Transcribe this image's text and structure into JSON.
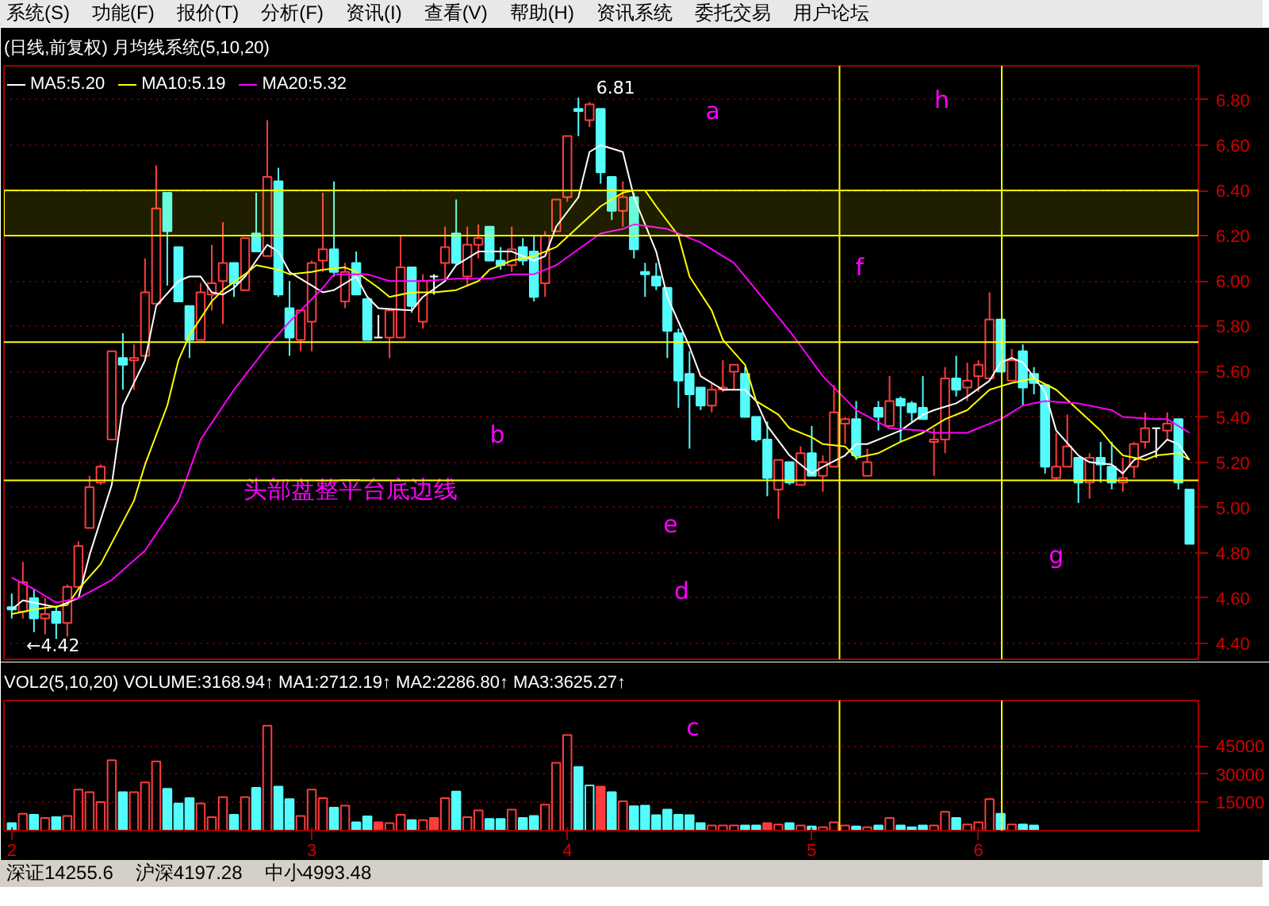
{
  "chart_data": [
    {
      "type": "candlestick",
      "title": "(日线,前复权) 月均线系统(5,10,20)",
      "categories": [
        "2",
        null,
        null,
        null,
        null,
        null,
        null,
        null,
        null,
        null,
        null,
        null,
        null,
        null,
        null,
        null,
        null,
        null,
        null,
        null,
        null,
        null,
        null,
        null,
        null,
        null,
        null,
        "3",
        null,
        null,
        null,
        null,
        null,
        null,
        null,
        null,
        null,
        null,
        null,
        null,
        null,
        null,
        null,
        null,
        null,
        null,
        null,
        null,
        null,
        null,
        "4",
        null,
        null,
        null,
        null,
        null,
        null,
        null,
        null,
        null,
        null,
        null,
        null,
        null,
        null,
        null,
        null,
        null,
        null,
        null,
        null,
        null,
        "5",
        null,
        null,
        null,
        null,
        null,
        null,
        null,
        null,
        null,
        null,
        null,
        null,
        null,
        null,
        "6",
        null,
        null,
        null,
        null,
        null,
        null,
        null,
        null,
        null,
        null,
        null,
        null,
        null,
        null,
        null,
        null,
        null,
        null,
        null
      ],
      "ohlc": [
        [
          4.56,
          4.62,
          4.51,
          4.55
        ],
        [
          4.54,
          4.76,
          4.51,
          4.67
        ],
        [
          4.6,
          4.64,
          4.45,
          4.51
        ],
        [
          4.51,
          4.6,
          4.44,
          4.53
        ],
        [
          4.54,
          4.56,
          4.42,
          4.49
        ],
        [
          4.49,
          4.66,
          4.43,
          4.65
        ],
        [
          4.65,
          4.85,
          4.64,
          4.83
        ],
        [
          4.91,
          5.14,
          4.91,
          5.09
        ],
        [
          5.11,
          5.19,
          5.1,
          5.18
        ],
        [
          5.3,
          5.69,
          5.3,
          5.69
        ],
        [
          5.66,
          5.77,
          5.52,
          5.63
        ],
        [
          5.65,
          5.72,
          5.52,
          5.66
        ],
        [
          5.67,
          6.1,
          5.66,
          5.95
        ],
        [
          5.9,
          6.51,
          5.9,
          6.32
        ],
        [
          6.39,
          6.39,
          5.98,
          6.22
        ],
        [
          6.15,
          6.15,
          5.91,
          5.91
        ],
        [
          5.89,
          5.89,
          5.66,
          5.74
        ],
        [
          5.74,
          5.99,
          5.74,
          5.95
        ],
        [
          5.94,
          6.16,
          5.87,
          5.99
        ],
        [
          6.0,
          6.26,
          5.81,
          6.08
        ],
        [
          6.08,
          6.08,
          5.93,
          5.99
        ],
        [
          5.96,
          6.19,
          5.96,
          6.19
        ],
        [
          6.21,
          6.39,
          6.13,
          6.13
        ],
        [
          6.11,
          6.71,
          6.11,
          6.46
        ],
        [
          6.44,
          6.5,
          5.93,
          5.94
        ],
        [
          5.88,
          6.0,
          5.67,
          5.75
        ],
        [
          5.74,
          5.87,
          5.69,
          5.87
        ],
        [
          5.82,
          6.09,
          5.69,
          6.08
        ],
        [
          6.09,
          6.39,
          6.04,
          6.14
        ],
        [
          6.14,
          6.44,
          6.02,
          6.04
        ],
        [
          5.91,
          6.08,
          5.88,
          6.04
        ],
        [
          6.08,
          6.13,
          5.94,
          5.94
        ],
        [
          5.92,
          5.92,
          5.74,
          5.74
        ],
        [
          5.75,
          5.85,
          5.75,
          5.75
        ],
        [
          5.75,
          5.87,
          5.66,
          5.87
        ],
        [
          5.75,
          6.2,
          5.75,
          6.06
        ],
        [
          6.06,
          6.06,
          5.86,
          5.89
        ],
        [
          5.82,
          6.03,
          5.79,
          6.0
        ],
        [
          6.02,
          6.03,
          5.94,
          6.02
        ],
        [
          6.08,
          6.24,
          6.0,
          6.15
        ],
        [
          6.21,
          6.36,
          6.07,
          6.08
        ],
        [
          6.02,
          6.24,
          5.98,
          6.16
        ],
        [
          6.16,
          6.25,
          6.1,
          6.19
        ],
        [
          6.24,
          6.24,
          6.09,
          6.09
        ],
        [
          6.09,
          6.15,
          6.05,
          6.07
        ],
        [
          6.07,
          6.24,
          6.04,
          6.14
        ],
        [
          6.15,
          6.19,
          6.07,
          6.09
        ],
        [
          6.13,
          6.2,
          5.91,
          5.93
        ],
        [
          5.99,
          6.22,
          5.93,
          6.2
        ],
        [
          6.22,
          6.36,
          6.22,
          6.36
        ],
        [
          6.37,
          6.64,
          6.35,
          6.64
        ],
        [
          6.76,
          6.81,
          6.64,
          6.75
        ],
        [
          6.71,
          6.79,
          6.68,
          6.78
        ],
        [
          6.76,
          6.76,
          6.43,
          6.48
        ],
        [
          6.46,
          6.46,
          6.27,
          6.31
        ],
        [
          6.31,
          6.44,
          6.24,
          6.37
        ],
        [
          6.37,
          6.39,
          6.1,
          6.14
        ],
        [
          6.04,
          6.08,
          5.93,
          6.03
        ],
        [
          6.02,
          6.08,
          5.96,
          5.98
        ],
        [
          5.97,
          5.97,
          5.66,
          5.78
        ],
        [
          5.77,
          5.79,
          5.44,
          5.56
        ],
        [
          5.59,
          5.69,
          5.26,
          5.5
        ],
        [
          5.53,
          5.53,
          5.43,
          5.45
        ],
        [
          5.45,
          5.55,
          5.42,
          5.52
        ],
        [
          5.52,
          5.65,
          5.51,
          5.53
        ],
        [
          5.6,
          5.63,
          5.52,
          5.63
        ],
        [
          5.59,
          5.62,
          5.4,
          5.4
        ],
        [
          5.4,
          5.4,
          5.29,
          5.3
        ],
        [
          5.3,
          5.38,
          5.05,
          5.13
        ],
        [
          5.08,
          5.21,
          4.95,
          5.21
        ],
        [
          5.2,
          5.2,
          5.1,
          5.11
        ],
        [
          5.1,
          5.27,
          5.1,
          5.24
        ],
        [
          5.24,
          5.36,
          5.14,
          5.14
        ],
        [
          5.14,
          5.23,
          5.07,
          5.2
        ],
        [
          5.18,
          5.54,
          5.18,
          5.42
        ],
        [
          5.37,
          5.4,
          5.28,
          5.39
        ],
        [
          5.39,
          5.47,
          5.21,
          5.23
        ],
        [
          5.14,
          5.26,
          5.14,
          5.2
        ],
        [
          5.44,
          5.47,
          5.34,
          5.4
        ],
        [
          5.36,
          5.58,
          5.36,
          5.47
        ],
        [
          5.48,
          5.49,
          5.29,
          5.45
        ],
        [
          5.46,
          5.47,
          5.38,
          5.42
        ],
        [
          5.44,
          5.58,
          5.39,
          5.39
        ],
        [
          5.29,
          5.35,
          5.14,
          5.3
        ],
        [
          5.3,
          5.62,
          5.24,
          5.57
        ],
        [
          5.57,
          5.67,
          5.49,
          5.52
        ],
        [
          5.53,
          5.64,
          5.47,
          5.56
        ],
        [
          5.58,
          5.65,
          5.51,
          5.63
        ],
        [
          5.57,
          5.95,
          5.57,
          5.83
        ],
        [
          5.83,
          5.83,
          5.6,
          5.6
        ],
        [
          5.56,
          5.7,
          5.56,
          5.65
        ],
        [
          5.69,
          5.72,
          5.45,
          5.53
        ],
        [
          5.59,
          5.62,
          5.5,
          5.55
        ],
        [
          5.54,
          5.54,
          5.15,
          5.18
        ],
        [
          5.13,
          5.33,
          5.12,
          5.18
        ],
        [
          5.18,
          5.41,
          5.18,
          5.27
        ],
        [
          5.22,
          5.22,
          5.02,
          5.11
        ],
        [
          5.11,
          5.24,
          5.04,
          5.22
        ],
        [
          5.22,
          5.29,
          5.11,
          5.19
        ],
        [
          5.18,
          5.29,
          5.08,
          5.11
        ],
        [
          5.11,
          5.22,
          5.07,
          5.13
        ],
        [
          5.18,
          5.29,
          5.13,
          5.28
        ],
        [
          5.29,
          5.42,
          5.26,
          5.35
        ],
        [
          5.35,
          5.35,
          5.22,
          5.35
        ],
        [
          5.34,
          5.42,
          5.3,
          5.37
        ],
        [
          5.39,
          5.39,
          5.08,
          5.11
        ],
        [
          5.08,
          5.08,
          4.84,
          4.84
        ]
      ],
      "colors": [
        "#54fcfc",
        "#ff3c3c",
        "#54fcfc",
        "#ff3c3c",
        "#54fcfc",
        "#ff3c3c",
        "#ff3c3c",
        "#ff3c3c",
        "#ff3c3c",
        "#ff3c3c",
        "#54fcfc",
        "#ff3c3c",
        "#ff3c3c",
        "#ff3c3c",
        "#54fcfc",
        "#54fcfc",
        "#54fcfc",
        "#ff3c3c",
        "#ff3c3c",
        "#ff3c3c",
        "#54fcfc",
        "#ff3c3c",
        "#54fcfc",
        "#ff3c3c",
        "#54fcfc",
        "#54fcfc",
        "#ff3c3c",
        "#ff3c3c",
        "#ff3c3c",
        "#54fcfc",
        "#ff3c3c",
        "#54fcfc",
        "#54fcfc",
        "#ffffff",
        "#ff3c3c",
        "#ff3c3c",
        "#54fcfc",
        "#ff3c3c",
        "#ffffff",
        "#ff3c3c",
        "#54fcfc",
        "#ff3c3c",
        "#ff3c3c",
        "#54fcfc",
        "#54fcfc",
        "#ff3c3c",
        "#54fcfc",
        "#54fcfc",
        "#ff3c3c",
        "#ff3c3c",
        "#ff3c3c",
        "#54fcfc",
        "#ff3c3c",
        "#54fcfc",
        "#54fcfc",
        "#ff3c3c",
        "#54fcfc",
        "#54fcfc",
        "#54fcfc",
        "#54fcfc",
        "#54fcfc",
        "#54fcfc",
        "#54fcfc",
        "#ff3c3c",
        "#ff3c3c",
        "#ff3c3c",
        "#54fcfc",
        "#54fcfc",
        "#54fcfc",
        "#ff3c3c",
        "#54fcfc",
        "#ff3c3c",
        "#54fcfc",
        "#ff3c3c",
        "#ff3c3c",
        "#ff3c3c",
        "#54fcfc",
        "#ff3c3c",
        "#54fcfc",
        "#ff3c3c",
        "#54fcfc",
        "#54fcfc",
        "#54fcfc",
        "#ff3c3c",
        "#ff3c3c",
        "#54fcfc",
        "#ff3c3c",
        "#ff3c3c",
        "#ff3c3c",
        "#54fcfc",
        "#ff3c3c",
        "#54fcfc",
        "#54fcfc",
        "#54fcfc",
        "#ff3c3c",
        "#ff3c3c",
        "#54fcfc",
        "#ff3c3c",
        "#54fcfc",
        "#54fcfc",
        "#ff3c3c",
        "#ff3c3c",
        "#ff3c3c",
        "#ffffff",
        "#ff3c3c",
        "#54fcfc",
        "#54fcfc"
      ],
      "series": [
        {
          "name": "MA5:5.20",
          "type": "line",
          "color": "#ffffff",
          "values": [
            4.55,
            4.59,
            null,
            null,
            4.56,
            null,
            4.6,
            4.79,
            null,
            5.1,
            5.45,
            null,
            5.65,
            5.89,
            null,
            6.0,
            6.02,
            6.02,
            5.95,
            5.94,
            5.97,
            6.02,
            6.09,
            6.16,
            6.13,
            6.04,
            null,
            5.98,
            5.95,
            5.96,
            null,
            6.02,
            5.93,
            5.88,
            null,
            null,
            5.87,
            5.93,
            null,
            6.0,
            6.07,
            null,
            6.13,
            null,
            null,
            6.13,
            null,
            6.09,
            6.11,
            6.24,
            null,
            6.37,
            6.57,
            6.6,
            null,
            6.57,
            6.37,
            null,
            6.13,
            5.93,
            null,
            5.71,
            5.58,
            null,
            5.52,
            null,
            5.52,
            5.47,
            5.36,
            null,
            5.23,
            5.19,
            5.15,
            5.18,
            null,
            5.23,
            5.28,
            5.28,
            null,
            5.32,
            5.34,
            null,
            5.41,
            5.43,
            null,
            5.46,
            5.49,
            null,
            5.56,
            5.64,
            5.66,
            5.64,
            null,
            5.51,
            5.34,
            null,
            5.23,
            5.2,
            null,
            5.19,
            5.15,
            5.21,
            null,
            5.25,
            5.3,
            5.28,
            5.21
          ]
        },
        {
          "name": "MA10:5.19",
          "type": "line",
          "color": "#ffff00",
          "values": [
            4.53,
            null,
            4.55,
            null,
            null,
            4.57,
            4.64,
            null,
            4.75,
            null,
            null,
            5.03,
            5.19,
            null,
            5.45,
            5.65,
            5.76,
            null,
            5.91,
            5.96,
            null,
            6.03,
            6.07,
            null,
            6.05,
            6.03,
            null,
            6.04,
            6.05,
            null,
            6.06,
            6.04,
            null,
            5.97,
            5.93,
            null,
            5.95,
            null,
            5.95,
            null,
            5.96,
            null,
            6.0,
            6.05,
            null,
            6.09,
            null,
            6.11,
            null,
            6.15,
            null,
            6.24,
            null,
            6.33,
            null,
            6.39,
            6.4,
            6.4,
            6.33,
            null,
            6.2,
            6.02,
            null,
            5.87,
            5.74,
            null,
            5.63,
            5.47,
            null,
            5.41,
            5.35,
            null,
            5.31,
            5.28,
            null,
            5.27,
            5.22,
            null,
            5.24,
            null,
            5.29,
            null,
            5.33,
            null,
            5.39,
            null,
            5.43,
            null,
            5.52,
            null,
            5.55,
            null,
            5.57,
            null,
            5.52,
            null,
            5.43,
            null,
            5.34,
            5.28,
            5.23,
            null,
            5.21,
            5.23,
            null,
            5.24,
            5.21
          ]
        },
        {
          "name": "MA20:5.32",
          "type": "line",
          "color": "#ff00ff",
          "values": [
            4.69,
            null,
            4.64,
            null,
            4.58,
            null,
            4.6,
            null,
            null,
            4.68,
            null,
            null,
            4.81,
            null,
            null,
            5.03,
            null,
            5.3,
            null,
            null,
            5.52,
            null,
            null,
            5.71,
            null,
            5.82,
            null,
            null,
            5.97,
            6.03,
            null,
            null,
            6.03,
            null,
            6.0,
            null,
            null,
            6.0,
            null,
            null,
            6.01,
            null,
            null,
            6.01,
            null,
            6.03,
            null,
            6.03,
            null,
            6.07,
            null,
            6.14,
            null,
            6.21,
            null,
            6.23,
            6.25,
            null,
            null,
            6.23,
            null,
            null,
            6.17,
            null,
            null,
            6.08,
            null,
            5.96,
            null,
            null,
            5.78,
            null,
            null,
            5.58,
            null,
            null,
            5.43,
            null,
            null,
            5.35,
            null,
            null,
            5.34,
            5.33,
            null,
            null,
            5.33,
            null,
            null,
            5.39,
            null,
            5.45,
            null,
            5.47,
            null,
            null,
            5.46,
            null,
            null,
            5.43,
            5.4,
            null,
            null,
            5.39,
            5.39,
            null,
            5.33
          ]
        }
      ],
      "ylim": [
        4.33,
        6.95
      ],
      "yticks": [
        {
          "value": 4.4,
          "label": "4.40"
        },
        {
          "value": 4.6,
          "label": "4.60"
        },
        {
          "value": 4.8,
          "label": "4.80"
        },
        {
          "value": 5.0,
          "label": "5.00"
        },
        {
          "value": 5.2,
          "label": "5.20"
        },
        {
          "value": 5.4,
          "label": "5.40"
        },
        {
          "value": 5.6,
          "label": "5.60"
        },
        {
          "value": 5.8,
          "label": "5.80"
        },
        {
          "value": 6.0,
          "label": "6.00"
        },
        {
          "value": 6.2,
          "label": "6.20"
        },
        {
          "value": 6.4,
          "label": "6.40"
        },
        {
          "value": 6.6,
          "label": "6.60"
        },
        {
          "value": 6.8,
          "label": "6.80"
        }
      ],
      "grid": "y",
      "tick_labels": "y",
      "legend": "top left",
      "ref_lines": [
        {
          "axis": "y",
          "value": 5.73,
          "color": "#ffff00"
        },
        {
          "axis": "y",
          "value": 5.12,
          "color": "#ffff00"
        }
      ],
      "bands": [
        {
          "axis": "y",
          "from": 6.2,
          "to": 6.4,
          "color": "#ffff00"
        }
      ],
      "annotations": [
        "系统(S)",
        "功能(F)",
        "报价(T)",
        "分析(F)",
        "资讯(I)",
        "查看(V)",
        "帮助(H)",
        "资讯系统",
        "委托交易",
        "用户论坛",
        "6.81",
        "←4.42",
        "a",
        "b",
        "d",
        "e",
        "f",
        "g",
        "h",
        "头部盘整平台底边线"
      ]
    },
    {
      "type": "bar",
      "title": "VOL2(5,10,20)  VOLUME:3168.94↑  MA1:2712.19↑  MA2:2286.80↑  MA3:3625.27↑",
      "categories": [
        "2",
        null,
        null,
        null,
        null,
        null,
        null,
        null,
        null,
        null,
        null,
        null,
        null,
        null,
        null,
        null,
        null,
        null,
        null,
        null,
        null,
        null,
        null,
        null,
        null,
        null,
        null,
        "3",
        null,
        null,
        null,
        null,
        null,
        null,
        null,
        null,
        null,
        null,
        null,
        null,
        null,
        null,
        null,
        null,
        null,
        null,
        null,
        null,
        null,
        null,
        "4",
        null,
        null,
        null,
        null,
        null,
        null,
        null,
        null,
        null,
        null,
        null,
        null,
        null,
        null,
        null,
        null,
        null,
        null,
        null,
        null,
        null,
        "5",
        null,
        null,
        null,
        null,
        null,
        null,
        null,
        null,
        null,
        null,
        null,
        null,
        null,
        null,
        "6",
        null,
        null,
        null,
        null,
        null,
        null,
        null,
        null,
        null,
        null,
        null,
        null,
        null,
        null,
        null,
        null,
        null,
        null,
        null
      ],
      "values": [
        4000,
        8900,
        8400,
        6700,
        7100,
        7800,
        21800,
        20400,
        15100,
        37300,
        20400,
        20400,
        25600,
        36700,
        22200,
        14400,
        17300,
        14400,
        7100,
        17800,
        8400,
        17800,
        22700,
        55600,
        23300,
        16700,
        7800,
        21800,
        17300,
        12200,
        13300,
        4400,
        7600,
        4400,
        4000,
        8400,
        5600,
        5600,
        6700,
        17300,
        20700,
        7100,
        10700,
        6200,
        6200,
        11100,
        6700,
        7800,
        13800,
        36000,
        50700,
        33800,
        24000,
        23300,
        20400,
        15600,
        12900,
        13300,
        8200,
        11100,
        8400,
        8200,
        4000,
        2700,
        2700,
        2700,
        2700,
        2700,
        4000,
        3300,
        4000,
        2700,
        2200,
        1800,
        4400,
        2700,
        2200,
        1800,
        2700,
        6700,
        2700,
        1800,
        2700,
        2700,
        10000,
        6700,
        3300,
        4400,
        16700,
        8900,
        3300,
        3300,
        2700,
        null,
        null,
        null,
        null,
        null,
        null,
        null,
        null,
        null,
        null,
        null,
        null,
        null,
        null
      ],
      "colors": [
        "#54fcfc",
        "#ff3c3c",
        "#54fcfc",
        "#ff3c3c",
        "#54fcfc",
        "#ff3c3c",
        "#ff3c3c",
        "#ff3c3c",
        "#ff3c3c",
        "#ff3c3c",
        "#54fcfc",
        "#ff3c3c",
        "#ff3c3c",
        "#ff3c3c",
        "#54fcfc",
        "#54fcfc",
        "#54fcfc",
        "#ff3c3c",
        "#ff3c3c",
        "#ff3c3c",
        "#54fcfc",
        "#ff3c3c",
        "#54fcfc",
        "#ff3c3c",
        "#54fcfc",
        "#54fcfc",
        "#ff3c3c",
        "#ff3c3c",
        "#ff3c3c",
        "#54fcfc",
        "#ff3c3c",
        "#54fcfc",
        "#54fcfc",
        "#ff3c3c",
        "#ff3c3c",
        "#ff3c3c",
        "#54fcfc",
        "#ff3c3c",
        "#ff3c3c",
        "#ff3c3c",
        "#54fcfc",
        "#ff3c3c",
        "#ff3c3c",
        "#54fcfc",
        "#54fcfc",
        "#ff3c3c",
        "#54fcfc",
        "#54fcfc",
        "#ff3c3c",
        "#ff3c3c",
        "#ff3c3c",
        "#54fcfc",
        "#54fcfc",
        "#ff3c3c",
        "#54fcfc",
        "#ff3c3c",
        "#54fcfc",
        "#54fcfc",
        "#54fcfc",
        "#54fcfc",
        "#54fcfc",
        "#54fcfc",
        "#54fcfc",
        "#ff3c3c",
        "#ff3c3c",
        "#ff3c3c",
        "#54fcfc",
        "#54fcfc",
        "#ff3c3c",
        "#ff3c3c",
        "#54fcfc",
        "#ff3c3c",
        "#54fcfc",
        "#ff3c3c",
        "#ff3c3c",
        "#ff3c3c",
        "#54fcfc",
        "#ff3c3c",
        "#54fcfc",
        "#ff3c3c",
        "#54fcfc",
        "#54fcfc",
        "#54fcfc",
        "#ff3c3c",
        "#ff3c3c",
        "#54fcfc",
        "#ff3c3c",
        "#ff3c3c",
        "#ff3c3c",
        "#54fcfc",
        "#ff3c3c",
        "#54fcfc",
        "#54fcfc",
        null,
        null,
        null,
        null,
        null,
        null,
        null,
        null,
        null,
        null,
        null,
        null,
        null,
        null
      ],
      "ylim": [
        0,
        69000
      ],
      "yticks": [
        15000,
        30000,
        45000
      ],
      "grid": "y",
      "annotations": [
        "深证14255.6",
        "沪深4197.28",
        "中小4993.48",
        "c"
      ]
    }
  ]
}
